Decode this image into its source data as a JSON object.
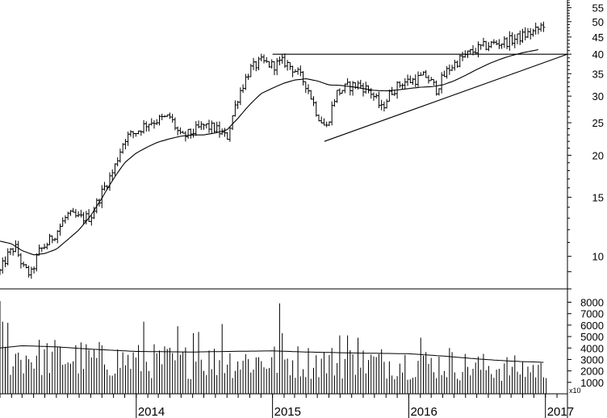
{
  "chart_data": [
    {
      "type": "ohlc-bar",
      "yscale": "log",
      "ylim": [
        8.0,
        58.0
      ],
      "xlim": [
        "2013-01-01",
        "2017-03-01"
      ],
      "yticks": [
        "8",
        "9",
        "10",
        "15",
        "20",
        "25",
        "30",
        "35",
        "40",
        "45",
        "50",
        "55"
      ],
      "ytick_values": [
        8,
        9,
        10,
        15,
        20,
        25,
        30,
        35,
        40,
        45,
        50,
        55
      ],
      "ytick_labels": [
        "",
        "",
        "10",
        "15",
        "20",
        "25",
        "30",
        "35",
        "40",
        "45",
        "50",
        "55"
      ],
      "price_anchors": [
        [
          "2013-01-01",
          9.0
        ],
        [
          "2013-01-20",
          10.0
        ],
        [
          "2013-02-10",
          10.7
        ],
        [
          "2013-03-05",
          9.2
        ],
        [
          "2013-03-25",
          8.8
        ],
        [
          "2013-04-15",
          10.3
        ],
        [
          "2013-05-10",
          11.0
        ],
        [
          "2013-06-01",
          11.8
        ],
        [
          "2013-07-01",
          13.3
        ],
        [
          "2013-08-01",
          13.0
        ],
        [
          "2013-09-01",
          13.1
        ],
        [
          "2013-10-01",
          15.5
        ],
        [
          "2013-11-01",
          18.0
        ],
        [
          "2013-12-01",
          22.5
        ],
        [
          "2014-01-01",
          23.5
        ],
        [
          "2014-02-01",
          25.0
        ],
        [
          "2014-03-01",
          25.5
        ],
        [
          "2014-04-01",
          26.0
        ],
        [
          "2014-05-01",
          22.5
        ],
        [
          "2014-06-01",
          23.5
        ],
        [
          "2014-07-01",
          24.5
        ],
        [
          "2014-08-01",
          24.0
        ],
        [
          "2014-09-01",
          22.5
        ],
        [
          "2014-10-01",
          30.0
        ],
        [
          "2014-11-01",
          36.0
        ],
        [
          "2014-12-01",
          38.0
        ],
        [
          "2015-01-01",
          37.0
        ],
        [
          "2015-02-01",
          38.0
        ],
        [
          "2015-03-01",
          36.0
        ],
        [
          "2015-04-01",
          32.5
        ],
        [
          "2015-05-01",
          26.5
        ],
        [
          "2015-05-25",
          24.0
        ],
        [
          "2015-06-20",
          30.5
        ],
        [
          "2015-07-20",
          32.0
        ],
        [
          "2015-08-20",
          32.5
        ],
        [
          "2015-09-20",
          31.0
        ],
        [
          "2015-10-20",
          27.5
        ],
        [
          "2015-11-15",
          31.0
        ],
        [
          "2015-12-15",
          33.0
        ],
        [
          "2016-01-15",
          33.5
        ],
        [
          "2016-02-15",
          34.5
        ],
        [
          "2016-03-15",
          31.5
        ],
        [
          "2016-04-15",
          36.0
        ],
        [
          "2016-05-15",
          38.5
        ],
        [
          "2016-06-15",
          40.5
        ],
        [
          "2016-07-15",
          42.0
        ],
        [
          "2016-08-15",
          43.0
        ],
        [
          "2016-09-15",
          43.5
        ],
        [
          "2016-10-15",
          44.5
        ],
        [
          "2016-11-15",
          46.0
        ],
        [
          "2016-12-10",
          47.0
        ],
        [
          "2016-12-28",
          49.5
        ]
      ],
      "moving_average": [
        [
          "2013-01-01",
          11.1
        ],
        [
          "2013-02-01",
          10.9
        ],
        [
          "2013-03-01",
          10.4
        ],
        [
          "2013-04-01",
          10.1
        ],
        [
          "2013-05-01",
          10.2
        ],
        [
          "2013-06-01",
          10.5
        ],
        [
          "2013-07-01",
          11.2
        ],
        [
          "2013-08-01",
          12.0
        ],
        [
          "2013-09-01",
          13.2
        ],
        [
          "2013-10-01",
          14.9
        ],
        [
          "2013-11-01",
          17.0
        ],
        [
          "2013-12-01",
          19.0
        ],
        [
          "2014-01-01",
          20.3
        ],
        [
          "2014-02-01",
          21.2
        ],
        [
          "2014-03-01",
          21.9
        ],
        [
          "2014-04-01",
          22.4
        ],
        [
          "2014-05-01",
          22.8
        ],
        [
          "2014-06-01",
          23.0
        ],
        [
          "2014-07-01",
          23.0
        ],
        [
          "2014-08-01",
          23.3
        ],
        [
          "2014-09-01",
          23.8
        ],
        [
          "2014-10-01",
          25.8
        ],
        [
          "2014-11-01",
          28.3
        ],
        [
          "2014-12-01",
          30.5
        ],
        [
          "2015-01-01",
          31.7
        ],
        [
          "2015-02-01",
          32.8
        ],
        [
          "2015-03-01",
          33.5
        ],
        [
          "2015-04-01",
          33.8
        ],
        [
          "2015-05-01",
          33.3
        ],
        [
          "2015-06-01",
          32.4
        ],
        [
          "2015-07-01",
          32.3
        ],
        [
          "2015-08-01",
          32.0
        ],
        [
          "2015-09-01",
          31.6
        ],
        [
          "2015-10-01",
          31.2
        ],
        [
          "2015-11-01",
          31.1
        ],
        [
          "2015-12-01",
          31.3
        ],
        [
          "2016-01-01",
          31.6
        ],
        [
          "2016-02-01",
          31.9
        ],
        [
          "2016-03-01",
          32.0
        ],
        [
          "2016-04-01",
          32.4
        ],
        [
          "2016-05-01",
          33.3
        ],
        [
          "2016-06-01",
          34.6
        ],
        [
          "2016-07-01",
          36.0
        ],
        [
          "2016-08-01",
          37.4
        ],
        [
          "2016-09-01",
          38.6
        ],
        [
          "2016-10-01",
          39.6
        ],
        [
          "2016-11-01",
          40.4
        ],
        [
          "2016-12-15",
          41.3
        ]
      ],
      "trendlines": [
        {
          "name": "resistance",
          "from": [
            "2015-01-01",
            40.0
          ],
          "to": [
            "2017-03-01",
            40.0
          ]
        },
        {
          "name": "rising-support",
          "from": [
            "2015-05-20",
            22.0
          ],
          "to": [
            "2017-03-01",
            40.0
          ]
        }
      ]
    },
    {
      "type": "bar",
      "name": "volume",
      "yticks": [
        "1000",
        "2000",
        "3000",
        "4000",
        "5000",
        "6000",
        "7000",
        "8000"
      ],
      "ytick_values": [
        1000,
        2000,
        3000,
        4000,
        5000,
        6000,
        7000,
        8000
      ],
      "ylim": [
        0,
        8600
      ],
      "multiplier_label": "x10",
      "bar_count": 210,
      "spike_values": [
        [
          "2013-01-01",
          8100
        ],
        [
          "2013-01-10",
          6300
        ],
        [
          "2013-01-20",
          6200
        ],
        [
          "2014-01-20",
          6300
        ],
        [
          "2014-04-20",
          5900
        ],
        [
          "2014-06-01",
          5300
        ],
        [
          "2014-06-15",
          5400
        ],
        [
          "2014-08-20",
          6100
        ],
        [
          "2015-01-20",
          7900
        ],
        [
          "2015-01-27",
          5300
        ],
        [
          "2015-07-01",
          5100
        ],
        [
          "2015-07-20",
          5100
        ],
        [
          "2015-08-15",
          4900
        ],
        [
          "2016-02-05",
          4900
        ],
        [
          "2016-04-20",
          4000
        ],
        [
          "2016-12-20",
          2700
        ]
      ],
      "moving_average": [
        [
          "2013-01-01",
          4000
        ],
        [
          "2013-03-01",
          4200
        ],
        [
          "2013-06-01",
          4100
        ],
        [
          "2013-09-01",
          3900
        ],
        [
          "2014-01-01",
          3700
        ],
        [
          "2014-06-01",
          3650
        ],
        [
          "2014-09-01",
          3700
        ],
        [
          "2015-01-01",
          3750
        ],
        [
          "2015-04-01",
          3650
        ],
        [
          "2015-09-01",
          3550
        ],
        [
          "2016-01-01",
          3500
        ],
        [
          "2016-04-01",
          3300
        ],
        [
          "2016-07-01",
          3050
        ],
        [
          "2016-10-01",
          2850
        ],
        [
          "2016-12-28",
          2750
        ]
      ]
    }
  ],
  "x_axis": {
    "years": [
      {
        "label": "2014",
        "date": "2014-01-01"
      },
      {
        "label": "2015",
        "date": "2015-01-01"
      },
      {
        "label": "2016",
        "date": "2016-01-01"
      },
      {
        "label": "2017",
        "date": "2017-01-01"
      }
    ]
  },
  "colors": {
    "background": "#ffffff",
    "ink": "#000000"
  }
}
